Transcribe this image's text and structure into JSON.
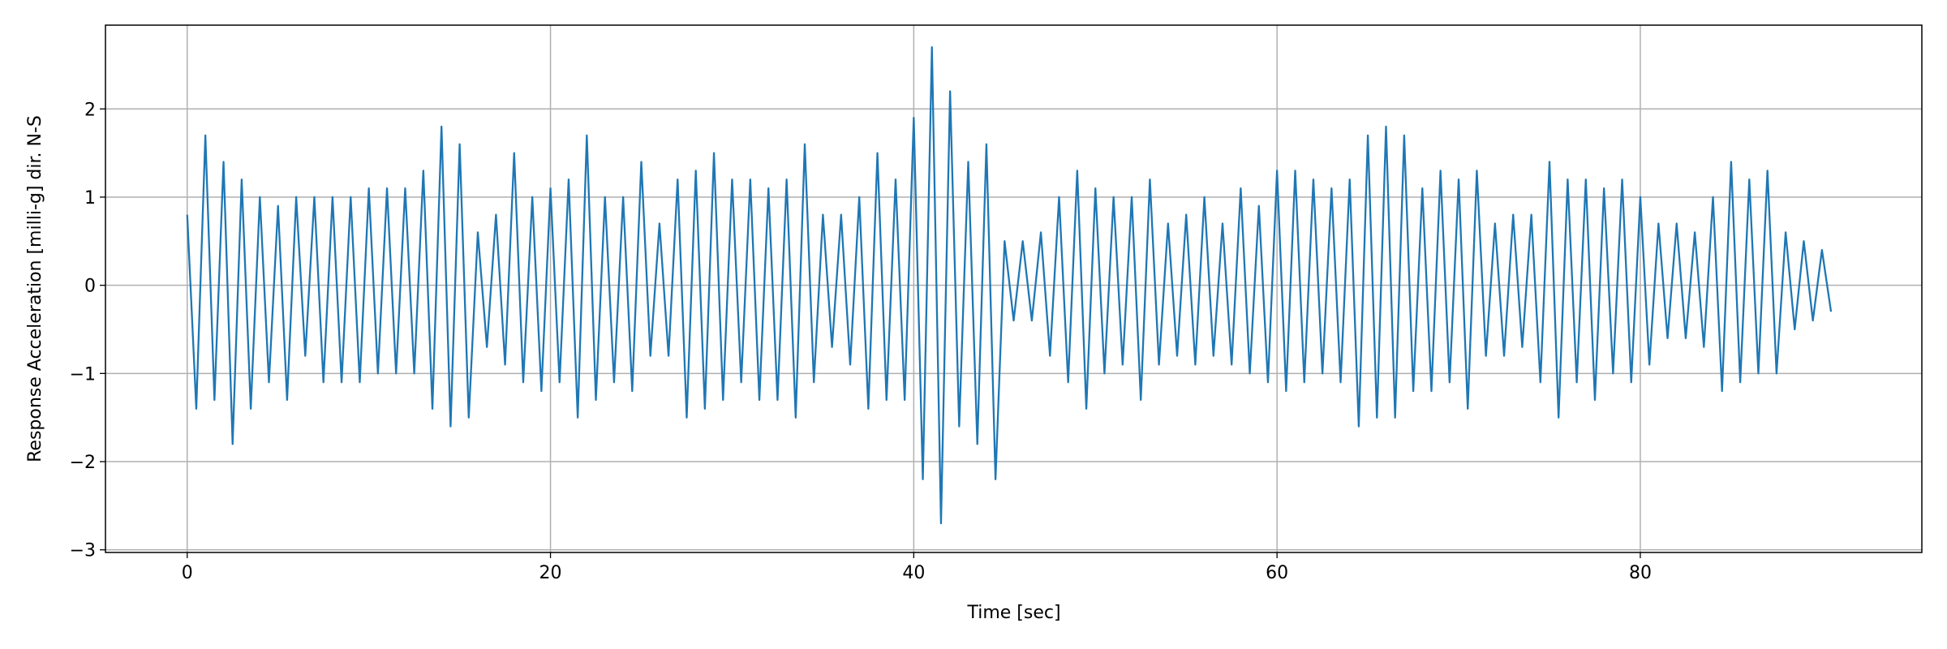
{
  "chart_data": {
    "type": "line",
    "xlabel": "Time [sec]",
    "ylabel": "Response Acceleration [milli-g] dir. N-S",
    "x": [
      0,
      0.5,
      1,
      1.5,
      2,
      2.5,
      3,
      3.5,
      4,
      4.5,
      5,
      5.5,
      6,
      6.5,
      7,
      7.5,
      8,
      8.5,
      9,
      9.5,
      10,
      10.5,
      11,
      11.5,
      12,
      12.5,
      13,
      13.5,
      14,
      14.5,
      15,
      15.5,
      16,
      16.5,
      17,
      17.5,
      18,
      18.5,
      19,
      19.5,
      20,
      20.5,
      21,
      21.5,
      22,
      22.5,
      23,
      23.5,
      24,
      24.5,
      25,
      25.5,
      26,
      26.5,
      27,
      27.5,
      28,
      28.5,
      29,
      29.5,
      30,
      30.5,
      31,
      31.5,
      32,
      32.5,
      33,
      33.5,
      34,
      34.5,
      35,
      35.5,
      36,
      36.5,
      37,
      37.5,
      38,
      38.5,
      39,
      39.5,
      40,
      40.5,
      41,
      41.5,
      42,
      42.5,
      43,
      43.5,
      44,
      44.5,
      45,
      45.5,
      46,
      46.5,
      47,
      47.5,
      48,
      48.5,
      49,
      49.5,
      50,
      50.5,
      51,
      51.5,
      52,
      52.5,
      53,
      53.5,
      54,
      54.5,
      55,
      55.5,
      56,
      56.5,
      57,
      57.5,
      58,
      58.5,
      59,
      59.5,
      60,
      60.5,
      61,
      61.5,
      62,
      62.5,
      63,
      63.5,
      64,
      64.5,
      65,
      65.5,
      66,
      66.5,
      67,
      67.5,
      68,
      68.5,
      69,
      69.5,
      70,
      70.5,
      71,
      71.5,
      72,
      72.5,
      73,
      73.5,
      74,
      74.5,
      75,
      75.5,
      76,
      76.5,
      77,
      77.5,
      78,
      78.5,
      79,
      79.5,
      80,
      80.5,
      81,
      81.5,
      82,
      82.5,
      83,
      83.5,
      84,
      84.5,
      85,
      85.5,
      86,
      86.5,
      87,
      87.5,
      88,
      88.5,
      89,
      89.5,
      90,
      90.5
    ],
    "series": [
      {
        "color": "#1f77b4",
        "values": [
          0.8,
          -1.4,
          1.7,
          -1.3,
          1.4,
          -1.8,
          1.2,
          -1.4,
          1.0,
          -1.1,
          0.9,
          -1.3,
          1.0,
          -0.8,
          1.0,
          -1.1,
          1.0,
          -1.1,
          1.0,
          -1.1,
          1.1,
          -1.0,
          1.1,
          -1.0,
          1.1,
          -1.0,
          1.3,
          -1.4,
          1.8,
          -1.6,
          1.6,
          -1.5,
          0.6,
          -0.7,
          0.8,
          -0.9,
          1.5,
          -1.1,
          1.0,
          -1.2,
          1.1,
          -1.1,
          1.2,
          -1.5,
          1.7,
          -1.3,
          1.0,
          -1.1,
          1.0,
          -1.2,
          1.4,
          -0.8,
          0.7,
          -0.8,
          1.2,
          -1.5,
          1.3,
          -1.4,
          1.5,
          -1.3,
          1.2,
          -1.1,
          1.2,
          -1.3,
          1.1,
          -1.3,
          1.2,
          -1.5,
          1.6,
          -1.1,
          0.8,
          -0.7,
          0.8,
          -0.9,
          1.0,
          -1.4,
          1.5,
          -1.3,
          1.2,
          -1.3,
          1.9,
          -2.2,
          2.7,
          -2.7,
          2.2,
          -1.6,
          1.4,
          -1.8,
          1.6,
          -2.2,
          0.5,
          -0.4,
          0.5,
          -0.4,
          0.6,
          -0.8,
          1.0,
          -1.1,
          1.3,
          -1.4,
          1.1,
          -1.0,
          1.0,
          -0.9,
          1.0,
          -1.3,
          1.2,
          -0.9,
          0.7,
          -0.8,
          0.8,
          -0.9,
          1.0,
          -0.8,
          0.7,
          -0.9,
          1.1,
          -1.0,
          0.9,
          -1.1,
          1.3,
          -1.2,
          1.3,
          -1.1,
          1.2,
          -1.0,
          1.1,
          -1.1,
          1.2,
          -1.6,
          1.7,
          -1.5,
          1.8,
          -1.5,
          1.7,
          -1.2,
          1.1,
          -1.2,
          1.3,
          -1.1,
          1.2,
          -1.4,
          1.3,
          -0.8,
          0.7,
          -0.8,
          0.8,
          -0.7,
          0.8,
          -1.1,
          1.4,
          -1.5,
          1.2,
          -1.1,
          1.2,
          -1.3,
          1.1,
          -1.0,
          1.2,
          -1.1,
          1.0,
          -0.9,
          0.7,
          -0.6,
          0.7,
          -0.6,
          0.6,
          -0.7,
          1.0,
          -1.2,
          1.4,
          -1.1,
          1.2,
          -1.0,
          1.3,
          -1.0,
          0.6,
          -0.5,
          0.5,
          -0.4,
          0.4,
          -0.3
        ]
      }
    ],
    "xlim": [
      -4.5,
      95.5
    ],
    "xticks": [
      0,
      20,
      40,
      60,
      80
    ],
    "ylim": [
      -3.03,
      2.95
    ],
    "yticks": [
      {
        "value": -3,
        "label": "−3"
      },
      {
        "value": -2,
        "label": "−2"
      },
      {
        "value": -1,
        "label": "−1"
      },
      0,
      1,
      2
    ],
    "grid": true
  }
}
